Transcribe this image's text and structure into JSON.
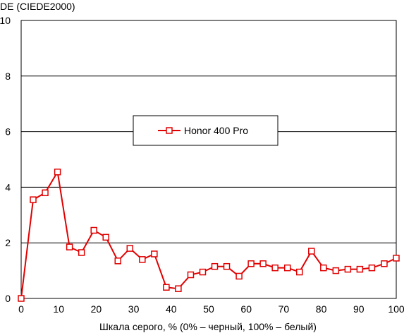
{
  "chart_data": {
    "type": "line",
    "title": "",
    "ylabel": "DE (CIEDE2000)",
    "xlabel": "Шкала серого, % (0% – черный, 100% – белый)",
    "xlim": [
      0,
      100
    ],
    "ylim": [
      0,
      10
    ],
    "x_ticks": [
      0,
      10,
      20,
      30,
      40,
      50,
      60,
      70,
      80,
      90,
      100
    ],
    "y_ticks": [
      0,
      2,
      4,
      6,
      8,
      10
    ],
    "grid": "horizontal",
    "legend_position": "center",
    "series": [
      {
        "name": "Honor 400 Pro",
        "color": "#e00000",
        "marker": "open-square",
        "x": [
          0,
          3.2,
          6.4,
          9.7,
          12.9,
          16.1,
          19.4,
          22.6,
          25.8,
          29,
          32.3,
          35.5,
          38.7,
          41.9,
          45.2,
          48.4,
          51.6,
          54.8,
          58.1,
          61.3,
          64.5,
          67.7,
          71,
          74.2,
          77.4,
          80.6,
          83.9,
          87.1,
          90.3,
          93.5,
          96.8,
          100
        ],
        "y": [
          0,
          3.55,
          3.8,
          4.55,
          1.85,
          1.65,
          2.45,
          2.2,
          1.35,
          1.8,
          1.4,
          1.6,
          0.4,
          0.35,
          0.85,
          0.95,
          1.15,
          1.15,
          0.8,
          1.25,
          1.25,
          1.1,
          1.1,
          0.95,
          1.7,
          1.1,
          1.0,
          1.05,
          1.05,
          1.1,
          1.25,
          1.45
        ]
      }
    ]
  }
}
